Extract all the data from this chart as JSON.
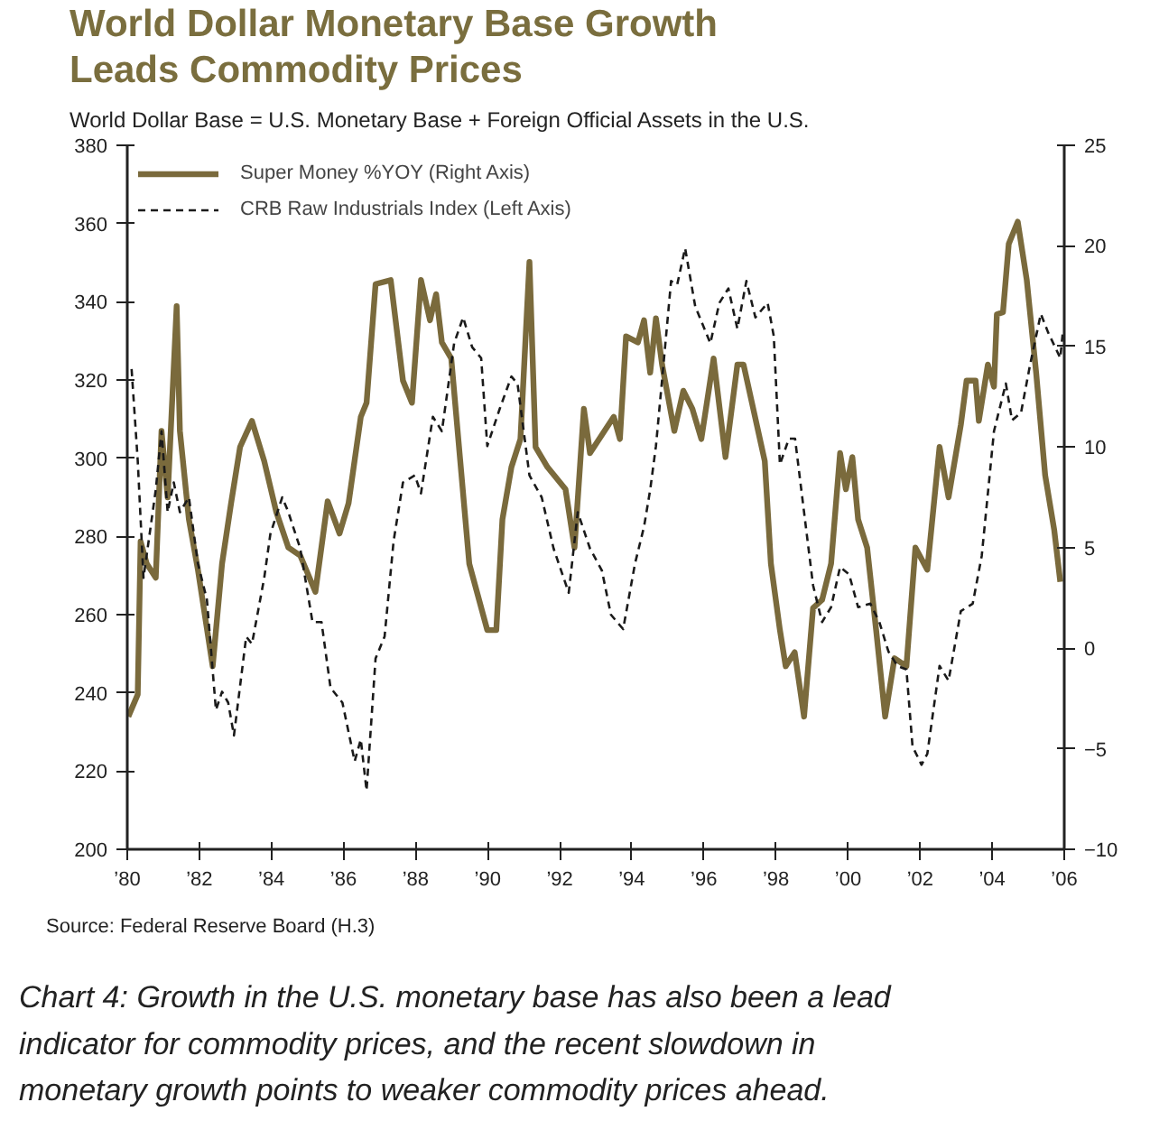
{
  "chart_data": {
    "type": "line",
    "title": "World Dollar Monetary Base Growth\nLeads Commodity Prices",
    "subtitle": "World Dollar Base = U.S. Monetary Base + Foreign Official Assets in the U.S.",
    "annotations": [
      "Source: Federal Reserve Board (H.3)",
      "Chart 4: Growth in the U.S. monetary base has also been a lead indicator for commodity prices, and the recent slowdown in monetary growth points to weaker commodity prices ahead."
    ],
    "legend": "top left",
    "grid": false,
    "xlim": [
      1980,
      2006
    ],
    "ylim": [
      200,
      380
    ],
    "y2lim": [
      -10,
      25
    ],
    "xticks": [
      {
        "value": 1980,
        "label": "’80"
      },
      {
        "value": 1982,
        "label": "’82"
      },
      {
        "value": 1984,
        "label": "’84"
      },
      {
        "value": 1986,
        "label": "’86"
      },
      {
        "value": 1988,
        "label": "’88"
      },
      {
        "value": 1990,
        "label": "’90"
      },
      {
        "value": 1992,
        "label": "’92"
      },
      {
        "value": 1994,
        "label": "’94"
      },
      {
        "value": 1996,
        "label": "’96"
      },
      {
        "value": 1998,
        "label": "’98"
      },
      {
        "value": 2000,
        "label": "’00"
      },
      {
        "value": 2002,
        "label": "’02"
      },
      {
        "value": 2004,
        "label": "’04"
      },
      {
        "value": 2006,
        "label": "’06"
      }
    ],
    "yticks": [
      200,
      220,
      240,
      260,
      280,
      300,
      320,
      340,
      360,
      380
    ],
    "y2ticks": [
      -10,
      -5,
      0,
      5,
      10,
      15,
      20,
      25
    ],
    "series": [
      {
        "name": "Super Money %YOY (Right Axis)",
        "color": "#7a6a3c",
        "axis": "y2",
        "line_style": "solid",
        "x": [
          1980.03,
          1980.29,
          1980.37,
          1980.54,
          1980.79,
          1980.95,
          1981.12,
          1981.37,
          1981.46,
          1981.71,
          1981.96,
          1982.37,
          1982.63,
          1982.88,
          1983.13,
          1983.46,
          1983.8,
          1984.13,
          1984.47,
          1984.8,
          1985.22,
          1985.56,
          1985.89,
          1986.14,
          1986.48,
          1986.64,
          1986.89,
          1987.31,
          1987.65,
          1987.9,
          1988.15,
          1988.4,
          1988.57,
          1988.73,
          1988.99,
          1989.49,
          1989.99,
          1990.24,
          1990.41,
          1990.66,
          1990.91,
          1991.16,
          1991.33,
          1991.66,
          1992.16,
          1992.41,
          1992.67,
          1992.84,
          1993.5,
          1993.67,
          1993.84,
          1994.17,
          1994.34,
          1994.51,
          1994.67,
          1994.84,
          1995.18,
          1995.43,
          1995.68,
          1995.93,
          1996.27,
          1996.6,
          1996.93,
          1997.1,
          1997.69,
          1997.86,
          1998.11,
          1998.27,
          1998.52,
          1998.78,
          1999.03,
          1999.28,
          1999.53,
          1999.78,
          1999.94,
          2000.12,
          2000.28,
          2000.53,
          2000.78,
          2001.03,
          2001.29,
          2001.62,
          2001.87,
          2002.2,
          2002.54,
          2002.79,
          2003.13,
          2003.29,
          2003.54,
          2003.63,
          2003.88,
          2004.05,
          2004.13,
          2004.3,
          2004.46,
          2004.71,
          2004.96,
          2005.22,
          2005.47,
          2005.72,
          2005.89
        ],
        "values": [
          -3.4,
          -2.3,
          5.3,
          4.2,
          3.5,
          10.8,
          7.5,
          17.0,
          10.8,
          6.4,
          3.9,
          -0.9,
          4.2,
          7.2,
          10.0,
          11.3,
          9.3,
          6.8,
          5.0,
          4.6,
          2.8,
          7.3,
          5.7,
          7.2,
          11.5,
          12.2,
          18.1,
          18.3,
          13.3,
          12.2,
          18.3,
          16.3,
          17.6,
          15.2,
          14.4,
          4.2,
          0.9,
          0.9,
          6.4,
          9.0,
          10.4,
          19.2,
          10.0,
          9.0,
          7.9,
          5.0,
          11.9,
          9.7,
          11.5,
          10.4,
          15.5,
          15.2,
          16.3,
          13.7,
          16.4,
          14.1,
          10.8,
          12.8,
          11.9,
          10.4,
          14.4,
          9.5,
          14.1,
          14.1,
          9.3,
          4.2,
          0.9,
          -0.9,
          -0.2,
          -3.4,
          2.0,
          2.4,
          4.2,
          9.7,
          7.9,
          9.5,
          6.4,
          5.0,
          0.9,
          -3.4,
          -0.5,
          -0.9,
          5.0,
          3.9,
          10.0,
          7.5,
          11.1,
          13.3,
          13.3,
          11.3,
          14.1,
          13.0,
          16.6,
          16.7,
          20.1,
          21.2,
          18.3,
          13.7,
          8.6,
          5.9,
          3.3
        ]
      },
      {
        "name": "CRB Raw Industrials Index (Left Axis)",
        "color": "#1a1a1a",
        "axis": "y",
        "line_style": "dashed",
        "x": [
          1980.12,
          1980.29,
          1980.45,
          1980.62,
          1980.79,
          1980.95,
          1981.12,
          1981.29,
          1981.46,
          1981.71,
          1981.96,
          1982.21,
          1982.46,
          1982.63,
          1982.8,
          1982.96,
          1983.3,
          1983.46,
          1983.8,
          1983.97,
          1984.3,
          1984.47,
          1984.8,
          1985.14,
          1985.39,
          1985.64,
          1985.97,
          1986.31,
          1986.48,
          1986.64,
          1986.89,
          1987.14,
          1987.39,
          1987.65,
          1987.98,
          1988.15,
          1988.48,
          1988.73,
          1989.07,
          1989.32,
          1989.57,
          1989.82,
          1989.99,
          1990.33,
          1990.66,
          1990.83,
          1991.16,
          1991.5,
          1991.83,
          1992.25,
          1992.5,
          1992.84,
          1993.17,
          1993.42,
          1993.76,
          1994.09,
          1994.34,
          1994.51,
          1994.67,
          1994.84,
          1995.09,
          1995.26,
          1995.48,
          1995.76,
          1995.93,
          1996.18,
          1996.43,
          1996.68,
          1996.93,
          1997.18,
          1997.43,
          1997.77,
          1997.94,
          1998.11,
          1998.36,
          1998.53,
          1998.78,
          1999.03,
          1999.28,
          1999.53,
          1999.78,
          2000.03,
          2000.28,
          2000.62,
          2000.87,
          2001.12,
          2001.37,
          2001.62,
          2001.79,
          2002.04,
          2002.2,
          2002.54,
          2002.79,
          2003.13,
          2003.46,
          2003.71,
          2004.05,
          2004.38,
          2004.55,
          2004.8,
          2005.05,
          2005.35,
          2005.55,
          2005.89,
          2005.96
        ],
        "values": [
          322.8,
          299.4,
          269.4,
          280.6,
          291.9,
          306.9,
          286.2,
          293.8,
          286.2,
          290.0,
          273.1,
          263.8,
          235.6,
          240.3,
          237.5,
          229.1,
          254.4,
          252.5,
          269.4,
          280.6,
          290.0,
          286.2,
          276.9,
          258.1,
          258.1,
          241.3,
          237.5,
          222.5,
          228.1,
          215.0,
          248.8,
          254.4,
          278.8,
          293.8,
          295.6,
          291.0,
          310.6,
          306.9,
          329.4,
          336.0,
          328.4,
          325.6,
          303.1,
          312.5,
          320.9,
          319.0,
          295.6,
          290.0,
          276.9,
          265.6,
          286.2,
          276.9,
          271.3,
          260.0,
          256.3,
          273.1,
          282.5,
          291.9,
          303.1,
          320.0,
          345.3,
          344.4,
          353.7,
          338.8,
          335.0,
          329.4,
          339.7,
          343.4,
          333.1,
          345.3,
          336.0,
          339.7,
          331.2,
          298.4,
          305.0,
          305.0,
          286.2,
          267.5,
          258.1,
          261.9,
          272.2,
          270.3,
          261.9,
          262.8,
          258.1,
          250.6,
          246.9,
          246.0,
          226.3,
          221.6,
          224.4,
          246.9,
          243.1,
          260.9,
          262.8,
          275.0,
          306.9,
          319.1,
          309.7,
          311.6,
          323.8,
          336.9,
          332.2,
          325.6,
          332.2
        ]
      }
    ]
  }
}
